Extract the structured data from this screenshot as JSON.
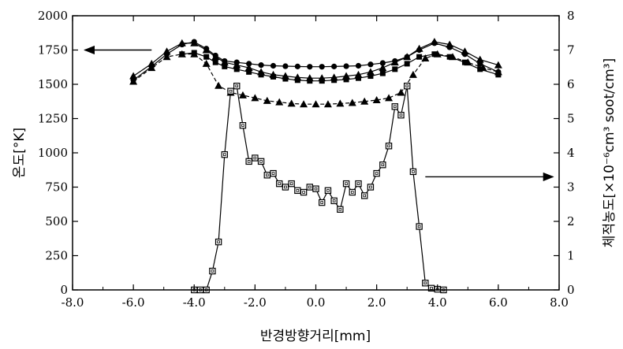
{
  "chart_data": {
    "type": "line",
    "title": "",
    "xlabel": "반경방향거리[mm]",
    "ylabel_left": "온도[°K]",
    "ylabel_right": "체적농도[×10⁻⁶cm³ soot/cm³]",
    "xlim": [
      -8.0,
      8.0
    ],
    "ylim_left": [
      0,
      2000
    ],
    "ylim_right": [
      0,
      8
    ],
    "xticks": [
      "-8.0",
      "-6.0",
      "-4.0",
      "-2.0",
      "0.0",
      "2.0",
      "4.0",
      "6.0",
      "8.0"
    ],
    "yticks_left": [
      "0",
      "250",
      "500",
      "750",
      "1000",
      "1250",
      "1500",
      "1750",
      "2000"
    ],
    "yticks_right": [
      "0",
      "1",
      "2",
      "3",
      "4",
      "5",
      "6",
      "7",
      "8"
    ],
    "grid": false,
    "annotations": [
      {
        "text": "arrow pointing to left axis (temperature)",
        "kind": "arrow",
        "direction": "left"
      },
      {
        "text": "arrow pointing to right axis (soot volume fraction)",
        "kind": "arrow",
        "direction": "right"
      }
    ],
    "series": [
      {
        "axis": "left",
        "marker": "triangle",
        "dashed": false,
        "x": [
          -6.0,
          -5.4,
          -4.9,
          -4.4,
          -4.0,
          -3.6,
          -3.3,
          -3.0,
          -2.6,
          -2.2,
          -1.8,
          -1.4,
          -1.0,
          -0.6,
          -0.2,
          0.2,
          0.6,
          1.0,
          1.4,
          1.8,
          2.2,
          2.6,
          3.0,
          3.4,
          3.9,
          4.4,
          4.9,
          5.4,
          6.0
        ],
        "y": [
          1560,
          1650,
          1740,
          1800,
          1800,
          1750,
          1700,
          1660,
          1640,
          1620,
          1590,
          1570,
          1560,
          1550,
          1545,
          1545,
          1550,
          1560,
          1570,
          1590,
          1620,
          1660,
          1700,
          1760,
          1810,
          1790,
          1740,
          1680,
          1640
        ]
      },
      {
        "axis": "left",
        "marker": "circle",
        "dashed": false,
        "x": [
          -6.0,
          -5.4,
          -4.9,
          -4.4,
          -4.0,
          -3.6,
          -3.3,
          -3.0,
          -2.6,
          -2.2,
          -1.8,
          -1.4,
          -1.0,
          -0.6,
          -0.2,
          0.2,
          0.6,
          1.0,
          1.4,
          1.8,
          2.2,
          2.6,
          3.0,
          3.4,
          3.9,
          4.4,
          4.9,
          5.4,
          6.0
        ],
        "y": [
          1530,
          1630,
          1720,
          1790,
          1810,
          1760,
          1710,
          1670,
          1660,
          1650,
          1640,
          1635,
          1632,
          1630,
          1628,
          1628,
          1630,
          1632,
          1635,
          1645,
          1655,
          1670,
          1700,
          1750,
          1800,
          1770,
          1720,
          1650,
          1590
        ]
      },
      {
        "axis": "left",
        "marker": "filled-square",
        "dashed": false,
        "x": [
          -4.4,
          -4.0,
          -3.6,
          -3.3,
          -3.0,
          -2.6,
          -2.2,
          -1.8,
          -1.4,
          -1.0,
          -0.6,
          -0.2,
          0.2,
          0.6,
          1.0,
          1.4,
          1.8,
          2.2,
          2.6,
          3.0,
          3.4,
          3.9,
          4.4,
          4.9,
          5.4,
          6.0
        ],
        "y": [
          1720,
          1730,
          1700,
          1660,
          1630,
          1610,
          1590,
          1570,
          1555,
          1540,
          1530,
          1525,
          1525,
          1530,
          1535,
          1545,
          1560,
          1580,
          1610,
          1650,
          1700,
          1720,
          1700,
          1660,
          1610,
          1570
        ]
      },
      {
        "axis": "left",
        "marker": "triangle",
        "dashed": true,
        "x": [
          -6.0,
          -5.4,
          -4.9,
          -4.4,
          -4.0,
          -3.6,
          -3.2,
          -2.8,
          -2.4,
          -2.0,
          -1.6,
          -1.2,
          -0.8,
          -0.4,
          0.0,
          0.4,
          0.8,
          1.2,
          1.6,
          2.0,
          2.4,
          2.8,
          3.2,
          3.6,
          4.0,
          4.5,
          5.0,
          5.5,
          6.0
        ],
        "y": [
          1520,
          1620,
          1700,
          1720,
          1720,
          1650,
          1490,
          1440,
          1420,
          1400,
          1380,
          1370,
          1360,
          1355,
          1355,
          1355,
          1360,
          1365,
          1375,
          1385,
          1400,
          1440,
          1570,
          1690,
          1720,
          1700,
          1660,
          1620,
          1590
        ]
      },
      {
        "axis": "right",
        "marker": "open-square",
        "dashed": false,
        "x": [
          -4.0,
          -3.8,
          -3.6,
          -3.4,
          -3.2,
          -3.0,
          -2.8,
          -2.6,
          -2.4,
          -2.2,
          -2.0,
          -1.8,
          -1.6,
          -1.4,
          -1.2,
          -1.0,
          -0.8,
          -0.6,
          -0.4,
          -0.2,
          0.0,
          0.2,
          0.4,
          0.6,
          0.8,
          1.0,
          1.2,
          1.4,
          1.6,
          1.8,
          2.0,
          2.2,
          2.4,
          2.6,
          2.8,
          3.0,
          3.2,
          3.4,
          3.6,
          3.8,
          4.0,
          4.2
        ],
        "y": [
          0.0,
          0.0,
          0.0,
          0.55,
          1.4,
          3.95,
          5.8,
          5.95,
          4.8,
          3.75,
          3.85,
          3.75,
          3.35,
          3.4,
          3.1,
          3.0,
          3.1,
          2.9,
          2.85,
          3.0,
          2.95,
          2.55,
          2.9,
          2.6,
          2.35,
          3.1,
          2.85,
          3.1,
          2.75,
          3.0,
          3.4,
          3.65,
          4.2,
          5.35,
          5.1,
          5.95,
          3.45,
          1.85,
          0.2,
          0.05,
          0.02,
          0.0
        ]
      }
    ]
  }
}
